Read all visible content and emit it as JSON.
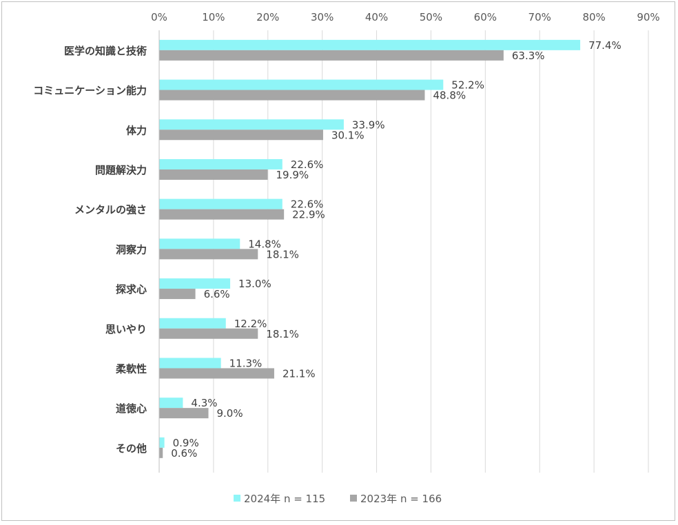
{
  "chart_data": {
    "type": "bar",
    "orientation": "horizontal",
    "categories": [
      "医学の知識と技術",
      "コミュニケーション能力",
      "体力",
      "問題解決力",
      "メンタルの強さ",
      "洞察力",
      "探求心",
      "思いやり",
      "柔軟性",
      "道徳心",
      "その他"
    ],
    "series": [
      {
        "name": "2024年 n = 115",
        "color": "#8ff5f7",
        "values": [
          77.4,
          52.2,
          33.9,
          22.6,
          22.6,
          14.8,
          13.0,
          12.2,
          11.3,
          4.3,
          0.9
        ],
        "labels": [
          "77.4%",
          "52.2%",
          "33.9%",
          "22.6%",
          "22.6%",
          "14.8%",
          "13.0%",
          "12.2%",
          "11.3%",
          "4.3%",
          "0.9%"
        ]
      },
      {
        "name": "2023年 n = 166",
        "color": "#a6a6a6",
        "values": [
          63.3,
          48.8,
          30.1,
          19.9,
          22.9,
          18.1,
          6.6,
          18.1,
          21.1,
          9.0,
          0.6
        ],
        "labels": [
          "63.3%",
          "48.8%",
          "30.1%",
          "19.9%",
          "22.9%",
          "18.1%",
          "6.6%",
          "18.1%",
          "21.1%",
          "9.0%",
          "0.6%"
        ]
      }
    ],
    "xlim": [
      0,
      90
    ],
    "xticks": [
      0,
      10,
      20,
      30,
      40,
      50,
      60,
      70,
      80,
      90
    ],
    "xtick_labels": [
      "0%",
      "10%",
      "20%",
      "30%",
      "40%",
      "50%",
      "60%",
      "70%",
      "80%",
      "90%"
    ],
    "axis_position": "top",
    "grid": true,
    "legend_position": "bottom"
  }
}
